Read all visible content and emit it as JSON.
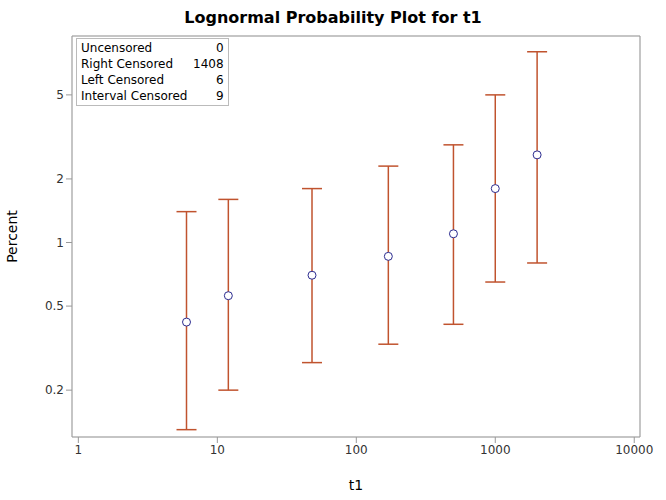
{
  "chart_data": {
    "type": "scatter",
    "title": "Lognormal Probability Plot for t1",
    "x_label": "t1",
    "y_label": "Percent",
    "x": [
      6,
      12,
      48,
      170,
      500,
      1000,
      2000
    ],
    "values": [
      0.42,
      0.56,
      0.7,
      0.86,
      1.1,
      1.8,
      2.6
    ],
    "lower": [
      0.13,
      0.2,
      0.27,
      0.33,
      0.41,
      0.65,
      0.8
    ],
    "upper": [
      1.4,
      1.6,
      1.8,
      2.3,
      2.9,
      5.0,
      8.0
    ],
    "xlim": [
      0.9,
      11000
    ],
    "xticks": [
      1,
      10,
      100,
      1000,
      10000
    ],
    "ylim": [
      0.12,
      9.5
    ],
    "yticks": [
      0.2,
      0.5,
      1,
      2,
      5
    ],
    "log": true,
    "grid": true,
    "marker": "circle",
    "color": "#2b2b8f",
    "error_color": "#c0532e",
    "censoring": [
      {
        "label": "Uncensored",
        "count": 0
      },
      {
        "label": "Right Censored",
        "count": 1408
      },
      {
        "label": "Left Censored",
        "count": 6
      },
      {
        "label": "Interval Censored",
        "count": 9
      }
    ]
  }
}
